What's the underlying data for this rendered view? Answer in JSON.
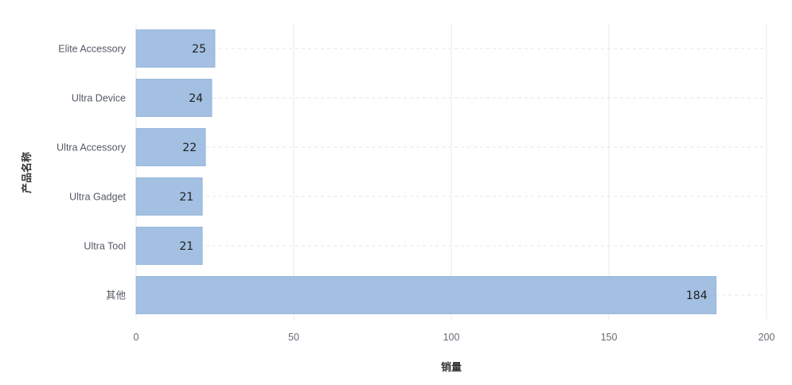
{
  "chart_data": {
    "type": "bar",
    "orientation": "horizontal",
    "categories": [
      "Elite Accessory",
      "Ultra Device",
      "Ultra Accessory",
      "Ultra Gadget",
      "Ultra Tool",
      "其他"
    ],
    "values": [
      25,
      24,
      22,
      21,
      21,
      184
    ],
    "xlabel": "销量",
    "ylabel": "产品名称",
    "xlim": [
      0,
      200
    ],
    "xticks": [
      0,
      50,
      100,
      150,
      200
    ],
    "grid": true,
    "data_labels": true,
    "colors": {
      "bar": "#a3c0e2",
      "bar_edge": "#8eb0d8",
      "grid_vertical": "#e8e9ec",
      "grid_dashed": "#e4e6ea"
    }
  }
}
